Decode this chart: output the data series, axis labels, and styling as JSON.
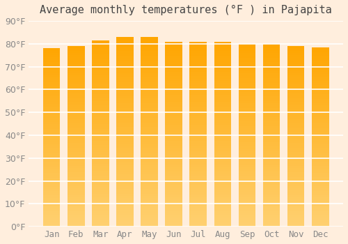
{
  "title": "Average monthly temperatures (°F ) in Pajapita",
  "months": [
    "Jan",
    "Feb",
    "Mar",
    "Apr",
    "May",
    "Jun",
    "Jul",
    "Aug",
    "Sep",
    "Oct",
    "Nov",
    "Dec"
  ],
  "values": [
    78.0,
    79.0,
    81.5,
    83.0,
    83.0,
    81.0,
    81.0,
    81.0,
    80.0,
    80.0,
    79.0,
    78.5
  ],
  "bar_color_top": "#FFA500",
  "bar_color_bottom": "#FFD070",
  "background_color": "#FFEEDD",
  "grid_color": "#FFFFFF",
  "text_color": "#888888",
  "title_color": "#444444",
  "ylim": [
    0,
    90
  ],
  "yticks": [
    0,
    10,
    20,
    30,
    40,
    50,
    60,
    70,
    80,
    90
  ],
  "title_fontsize": 11,
  "tick_fontsize": 9
}
